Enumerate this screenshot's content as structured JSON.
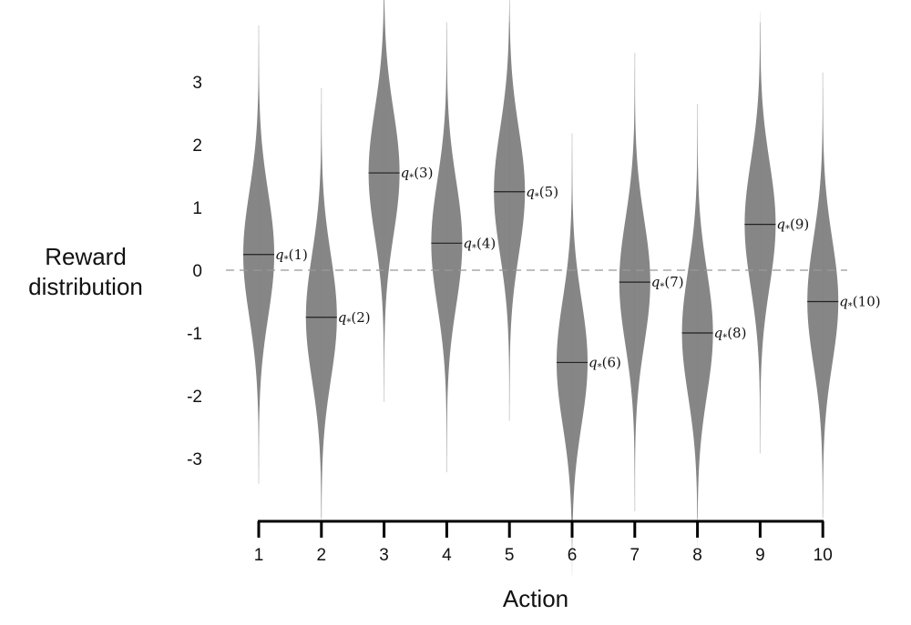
{
  "chart_data": {
    "type": "violin",
    "xlabel": "Action",
    "ylabel": [
      "Reward",
      "distribution"
    ],
    "categories": [
      "1",
      "2",
      "3",
      "4",
      "5",
      "6",
      "7",
      "8",
      "9",
      "10"
    ],
    "ylim": [
      -3.95,
      3.95
    ],
    "yticks": [
      "3",
      "2",
      "1",
      "0",
      "-1",
      "-2",
      "-3"
    ],
    "ytick_values": [
      3,
      2,
      1,
      0,
      -1,
      -2,
      -3
    ],
    "reference_line": 0,
    "means": [
      0.25,
      -0.75,
      1.55,
      0.43,
      1.25,
      -1.47,
      -0.19,
      -1.0,
      0.73,
      -0.5
    ],
    "std": 1,
    "mean_label_prefix": "q",
    "mean_label_subscript": "*",
    "violin_color": "#808080",
    "mean_line_color": "#222222",
    "grid": false,
    "legend": "none"
  }
}
